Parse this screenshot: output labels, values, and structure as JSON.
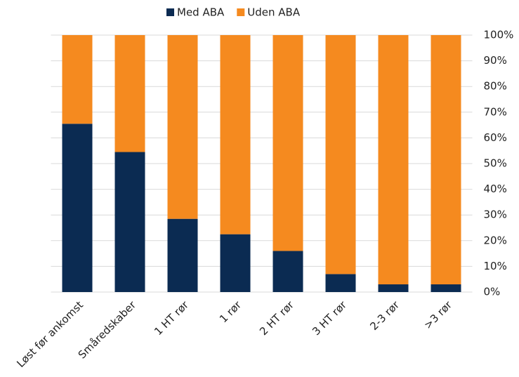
{
  "chart_data": {
    "type": "stacked_bar",
    "categories": [
      "Løst før ankomst",
      "Småredskaber",
      "1 HT rør",
      "1 rør",
      "2 HT rør",
      "3 HT rør",
      "2-3 rør",
      ">3 rør"
    ],
    "series": [
      {
        "name": "Med ABA",
        "color": "#0b2b52",
        "values": [
          65.5,
          54.5,
          28.5,
          22.5,
          16,
          7,
          3,
          3
        ]
      },
      {
        "name": "Uden ABA",
        "color": "#f58a1f",
        "values": [
          34.5,
          45.5,
          71.5,
          77.5,
          84,
          93,
          97,
          97
        ]
      }
    ],
    "ylim": [
      0,
      100
    ],
    "yticks": [
      {
        "value": 0,
        "label": "0%"
      },
      {
        "value": 10,
        "label": "10%"
      },
      {
        "value": 20,
        "label": "20%"
      },
      {
        "value": 30,
        "label": "30%"
      },
      {
        "value": 40,
        "label": "40%"
      },
      {
        "value": 50,
        "label": "50%"
      },
      {
        "value": 60,
        "label": "60%"
      },
      {
        "value": 70,
        "label": "70%"
      },
      {
        "value": 80,
        "label": "80%"
      },
      {
        "value": 90,
        "label": "90%"
      },
      {
        "value": 100,
        "label": "100%"
      }
    ],
    "grid": true,
    "legend": "top"
  }
}
